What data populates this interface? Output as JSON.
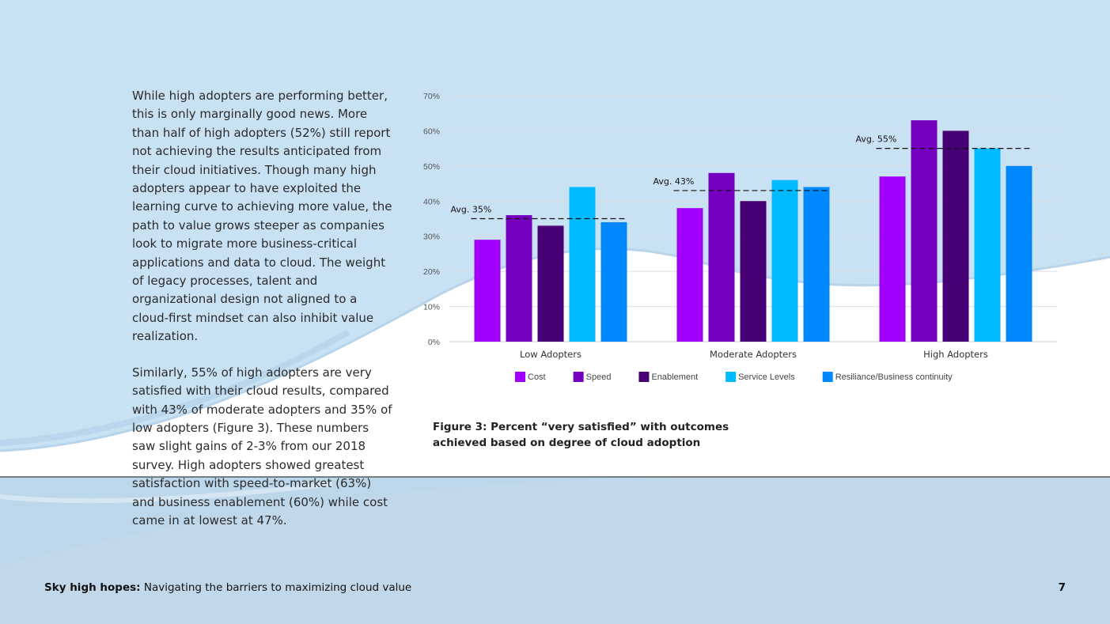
{
  "body": {
    "paragraph_1": "While high adopters are performing better, this is only marginally good news. More than half of high adopters (52%) still report not achieving the results anticipated from their cloud initiatives. Though many high adopters appear to have exploited the learning curve to achieving more value, the path to value grows steeper as companies look to migrate more business-critical applications and data to cloud. The weight of legacy processes, talent and organizational design not aligned to a cloud-first mindset can also inhibit value realization.",
    "paragraph_2": "Similarly, 55% of high adopters are very satisfied with their cloud results, compared with 43% of moderate adopters and 35% of low adopters (Figure 3). These numbers saw slight gains of 2-3% from our 2018 survey. High adopters showed greatest satisfaction with speed-to-market (63%) and business enablement (60%) while cost came in at lowest at 47%."
  },
  "caption": "Figure 3: Percent “very satisfied” with outcomes achieved based on degree of cloud adoption",
  "footer": {
    "title_bold": "Sky high hopes:",
    "title_rest": " Navigating the barriers to maximizing cloud value",
    "page_number": "7"
  },
  "chart_data": {
    "type": "bar",
    "categories": [
      "Low Adopters",
      "Moderate Adopters",
      "High Adopters"
    ],
    "series": [
      {
        "name": "Cost",
        "color": "#a100ff",
        "values": [
          29,
          38,
          47
        ]
      },
      {
        "name": "Speed",
        "color": "#7500c0",
        "values": [
          36,
          48,
          63
        ]
      },
      {
        "name": "Enablement",
        "color": "#460073",
        "values": [
          33,
          40,
          60
        ]
      },
      {
        "name": "Service Levels",
        "color": "#00baff",
        "values": [
          44,
          46,
          55
        ]
      },
      {
        "name": "Resiliance/Business continuity",
        "color": "#0088ff",
        "values": [
          34,
          44,
          50
        ]
      }
    ],
    "averages": [
      {
        "label": "Avg. 35%",
        "value": 35
      },
      {
        "label": "Avg. 43%",
        "value": 43
      },
      {
        "label": "Avg. 55%",
        "value": 55
      }
    ],
    "ylim": [
      0,
      70
    ],
    "yticks": [
      "0%",
      "10%",
      "20%",
      "30%",
      "40%",
      "50%",
      "60%",
      "70%"
    ],
    "grid": true,
    "legend_position": "bottom"
  }
}
